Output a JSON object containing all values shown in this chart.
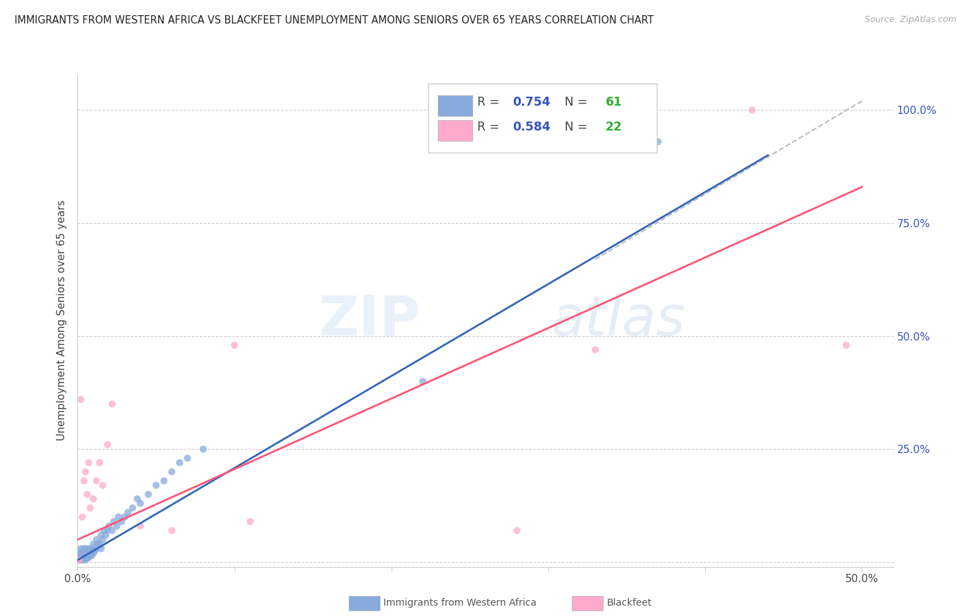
{
  "title": "IMMIGRANTS FROM WESTERN AFRICA VS BLACKFEET UNEMPLOYMENT AMONG SENIORS OVER 65 YEARS CORRELATION CHART",
  "source": "Source: ZipAtlas.com",
  "ylabel": "Unemployment Among Seniors over 65 years",
  "xlim": [
    0.0,
    0.52
  ],
  "ylim": [
    -0.01,
    1.08
  ],
  "xticks": [
    0.0,
    0.1,
    0.2,
    0.3,
    0.4,
    0.5
  ],
  "yticks": [
    0.0,
    0.25,
    0.5,
    0.75,
    1.0
  ],
  "ytick_labels_right": [
    "",
    "25.0%",
    "50.0%",
    "75.0%",
    "100.0%"
  ],
  "blue_color": "#88AADD",
  "pink_color": "#FFAACC",
  "blue_line_color": "#3366BB",
  "pink_line_color": "#FF5577",
  "R_blue": 0.754,
  "N_blue": 61,
  "R_pink": 0.584,
  "N_pink": 22,
  "legend_R_color": "#3355BB",
  "legend_N_color": "#33AA33",
  "watermark_text": "ZIPatlas",
  "background_color": "#FFFFFF",
  "grid_color": "#CCCCCC",
  "blue_scatter_x": [
    0.001,
    0.001,
    0.001,
    0.002,
    0.002,
    0.002,
    0.002,
    0.003,
    0.003,
    0.003,
    0.003,
    0.004,
    0.004,
    0.004,
    0.005,
    0.005,
    0.005,
    0.005,
    0.006,
    0.006,
    0.006,
    0.007,
    0.007,
    0.007,
    0.008,
    0.008,
    0.009,
    0.009,
    0.01,
    0.01,
    0.011,
    0.012,
    0.012,
    0.013,
    0.014,
    0.015,
    0.015,
    0.016,
    0.017,
    0.018,
    0.019,
    0.02,
    0.022,
    0.023,
    0.025,
    0.026,
    0.028,
    0.03,
    0.032,
    0.035,
    0.038,
    0.04,
    0.045,
    0.05,
    0.055,
    0.06,
    0.065,
    0.07,
    0.08,
    0.22,
    0.37
  ],
  "blue_scatter_y": [
    0.005,
    0.01,
    0.015,
    0.005,
    0.01,
    0.02,
    0.03,
    0.005,
    0.01,
    0.015,
    0.025,
    0.01,
    0.02,
    0.03,
    0.005,
    0.01,
    0.02,
    0.03,
    0.01,
    0.015,
    0.025,
    0.01,
    0.02,
    0.03,
    0.015,
    0.025,
    0.015,
    0.03,
    0.02,
    0.04,
    0.025,
    0.03,
    0.05,
    0.04,
    0.04,
    0.03,
    0.06,
    0.05,
    0.07,
    0.06,
    0.07,
    0.08,
    0.07,
    0.09,
    0.08,
    0.1,
    0.09,
    0.1,
    0.11,
    0.12,
    0.14,
    0.13,
    0.15,
    0.17,
    0.18,
    0.2,
    0.22,
    0.23,
    0.25,
    0.4,
    0.93
  ],
  "pink_scatter_x": [
    0.001,
    0.002,
    0.003,
    0.004,
    0.005,
    0.006,
    0.007,
    0.008,
    0.01,
    0.012,
    0.014,
    0.016,
    0.019,
    0.022,
    0.04,
    0.06,
    0.1,
    0.11,
    0.28,
    0.33,
    0.43,
    0.49
  ],
  "pink_scatter_y": [
    0.005,
    0.36,
    0.1,
    0.18,
    0.2,
    0.15,
    0.22,
    0.12,
    0.14,
    0.18,
    0.22,
    0.17,
    0.26,
    0.35,
    0.08,
    0.07,
    0.48,
    0.09,
    0.07,
    0.47,
    1.0,
    0.48
  ],
  "blue_line_x": [
    0.0,
    0.44
  ],
  "blue_line_y": [
    0.005,
    0.9
  ],
  "pink_line_x": [
    0.0,
    0.5
  ],
  "pink_line_y": [
    0.05,
    0.83
  ],
  "diag_line_x": [
    0.33,
    0.5
  ],
  "diag_line_y": [
    0.67,
    1.02
  ]
}
